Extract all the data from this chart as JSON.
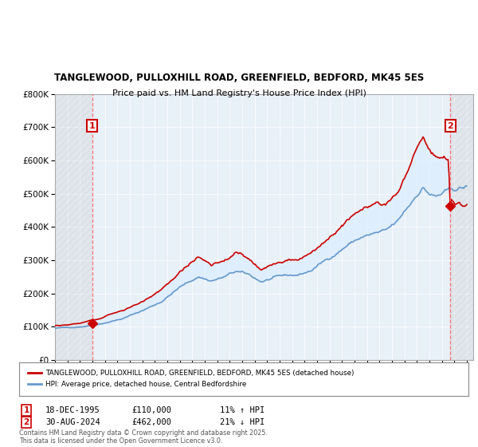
{
  "title1": "TANGLEWOOD, PULLOXHILL ROAD, GREENFIELD, BEDFORD, MK45 5ES",
  "title2": "Price paid vs. HM Land Registry's House Price Index (HPI)",
  "sale1_date": "18-DEC-1995",
  "sale1_price": 110000,
  "sale1_hpi": "11% ↑ HPI",
  "sale2_date": "30-AUG-2024",
  "sale2_price": 462000,
  "sale2_hpi": "21% ↓ HPI",
  "legend1": "TANGLEWOOD, PULLOXHILL ROAD, GREENFIELD, BEDFORD, MK45 5ES (detached house)",
  "legend2": "HPI: Average price, detached house, Central Bedfordshire",
  "footnote": "Contains HM Land Registry data © Crown copyright and database right 2025.\nThis data is licensed under the Open Government Licence v3.0.",
  "line_red": "#cc0000",
  "line_blue": "#6699cc",
  "fill_color": "#ddeeff",
  "bg_plot": "#e8f0f8",
  "background_color": "#ffffff",
  "ylim": [
    0,
    800000
  ],
  "xlim_start": 1993.0,
  "xlim_end": 2026.5,
  "sale1_x": 1995.97,
  "sale2_x": 2024.66,
  "hpi_seed": 42,
  "hpi_base": 95000,
  "red_base": 110000
}
